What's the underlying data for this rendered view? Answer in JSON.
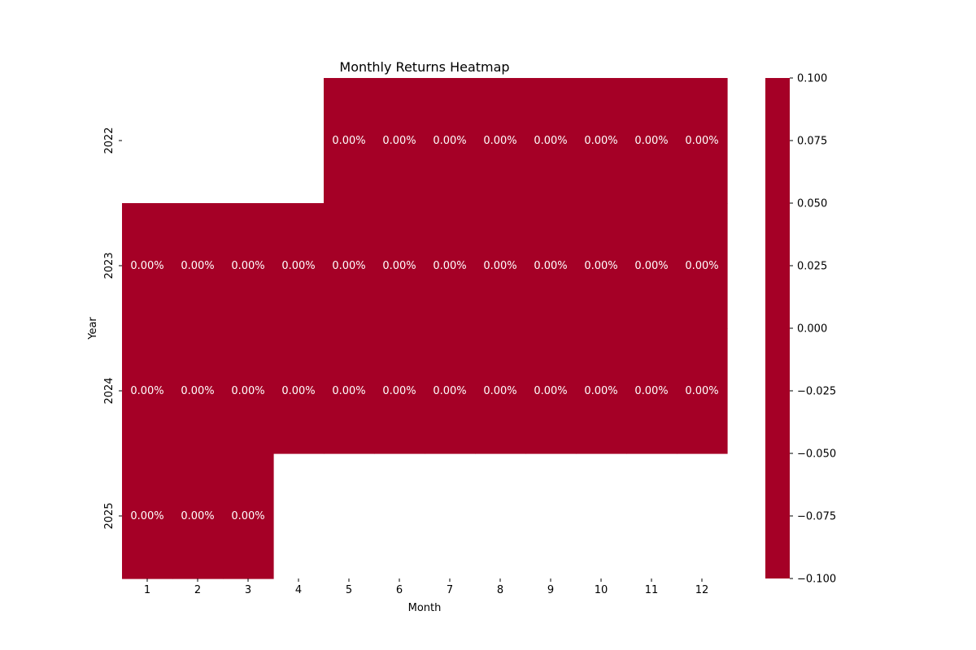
{
  "chart_data": {
    "type": "heatmap",
    "title": "Monthly Returns Heatmap",
    "xlabel": "Month",
    "ylabel": "Year",
    "x_categories": [
      "1",
      "2",
      "3",
      "4",
      "5",
      "6",
      "7",
      "8",
      "9",
      "10",
      "11",
      "12"
    ],
    "y_categories": [
      "2022",
      "2023",
      "2024",
      "2025"
    ],
    "values": [
      [
        null,
        null,
        null,
        null,
        0,
        0,
        0,
        0,
        0,
        0,
        0,
        0
      ],
      [
        0,
        0,
        0,
        0,
        0,
        0,
        0,
        0,
        0,
        0,
        0,
        0
      ],
      [
        0,
        0,
        0,
        0,
        0,
        0,
        0,
        0,
        0,
        0,
        0,
        0
      ],
      [
        0,
        0,
        0,
        null,
        null,
        null,
        null,
        null,
        null,
        null,
        null,
        null
      ]
    ],
    "cell_labels": [
      [
        null,
        null,
        null,
        null,
        "0.00%",
        "0.00%",
        "0.00%",
        "0.00%",
        "0.00%",
        "0.00%",
        "0.00%",
        "0.00%"
      ],
      [
        "0.00%",
        "0.00%",
        "0.00%",
        "0.00%",
        "0.00%",
        "0.00%",
        "0.00%",
        "0.00%",
        "0.00%",
        "0.00%",
        "0.00%",
        "0.00%"
      ],
      [
        "0.00%",
        "0.00%",
        "0.00%",
        "0.00%",
        "0.00%",
        "0.00%",
        "0.00%",
        "0.00%",
        "0.00%",
        "0.00%",
        "0.00%",
        "0.00%"
      ],
      [
        "0.00%",
        "0.00%",
        "0.00%",
        null,
        null,
        null,
        null,
        null,
        null,
        null,
        null,
        null
      ]
    ],
    "colorbar": {
      "range": [
        -0.1,
        0.1
      ],
      "ticks": [
        "0.100",
        "0.075",
        "0.050",
        "0.025",
        "0.000",
        "−0.025",
        "−0.050",
        "−0.075",
        "−0.100"
      ],
      "color": "#a50026"
    },
    "cell_color": "#a50026",
    "cell_text_color": "#ffffff",
    "legend": "right"
  }
}
